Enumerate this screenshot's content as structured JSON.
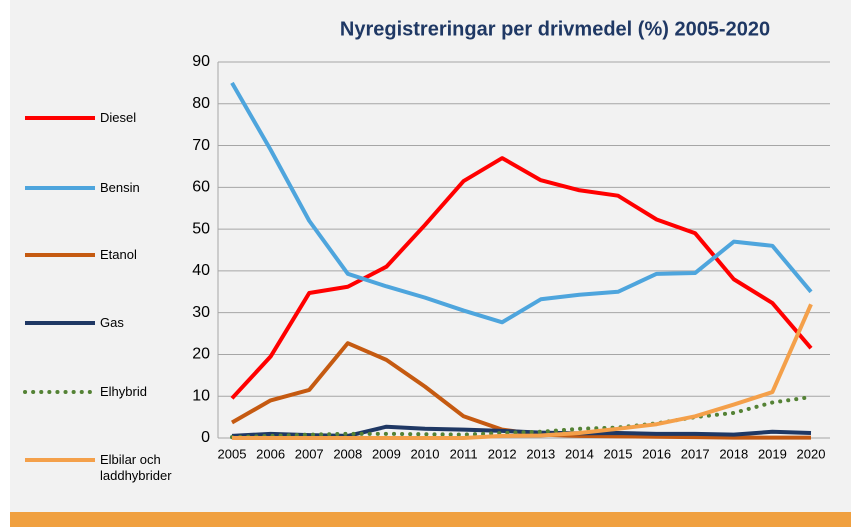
{
  "chart_data": {
    "type": "line",
    "title": "Nyregistreringar per drivmedel (%) 2005-2020",
    "categories": [
      "2005",
      "2006",
      "2007",
      "2008",
      "2009",
      "2010",
      "2011",
      "2012",
      "2013",
      "2014",
      "2015",
      "2016",
      "2017",
      "2018",
      "2019",
      "2020"
    ],
    "series": [
      {
        "name": "Diesel",
        "color": "#ff0000",
        "values": [
          9.5,
          19.5,
          34.7,
          36.2,
          41,
          51,
          61.5,
          67,
          61.7,
          59.3,
          58,
          52.3,
          49,
          38,
          32.3,
          21.5
        ]
      },
      {
        "name": "Bensin",
        "color": "#4ea5dd",
        "values": [
          85,
          69,
          52,
          39.3,
          36.3,
          33.6,
          30.5,
          27.7,
          33.2,
          34.3,
          35,
          39.3,
          39.5,
          47,
          46,
          35
        ]
      },
      {
        "name": "Etanol",
        "color": "#c55a11",
        "values": [
          3.7,
          9,
          11.5,
          22.7,
          18.7,
          12.3,
          5.2,
          2,
          0.8,
          0.5,
          0.4,
          0.3,
          0.2,
          0.1,
          0.1,
          0.1
        ]
      },
      {
        "name": "Gas",
        "color": "#1f3864",
        "values": [
          0.5,
          1,
          0.7,
          0.5,
          2.7,
          2.2,
          2,
          1.7,
          1.3,
          1.1,
          1.2,
          1,
          1,
          0.8,
          1.5,
          1.2
        ]
      },
      {
        "name": "Elhybrid",
        "color": "#548235",
        "style": "dotted",
        "values": [
          0.2,
          0.5,
          0.8,
          1,
          1,
          0.9,
          0.8,
          1.2,
          1.5,
          2.2,
          2.5,
          3.5,
          5,
          6,
          8.5,
          9.8
        ]
      },
      {
        "name": "Elbilar och laddhybrider",
        "color": "#f4a04a",
        "values": [
          0,
          0,
          0,
          0,
          0,
          0,
          0,
          0.5,
          0.6,
          1.2,
          2.2,
          3.3,
          5.2,
          8,
          11,
          32
        ]
      }
    ],
    "ylim": [
      0,
      90
    ],
    "yticks": [
      0,
      10,
      20,
      30,
      40,
      50,
      60,
      70,
      80,
      90
    ],
    "grid": true
  }
}
